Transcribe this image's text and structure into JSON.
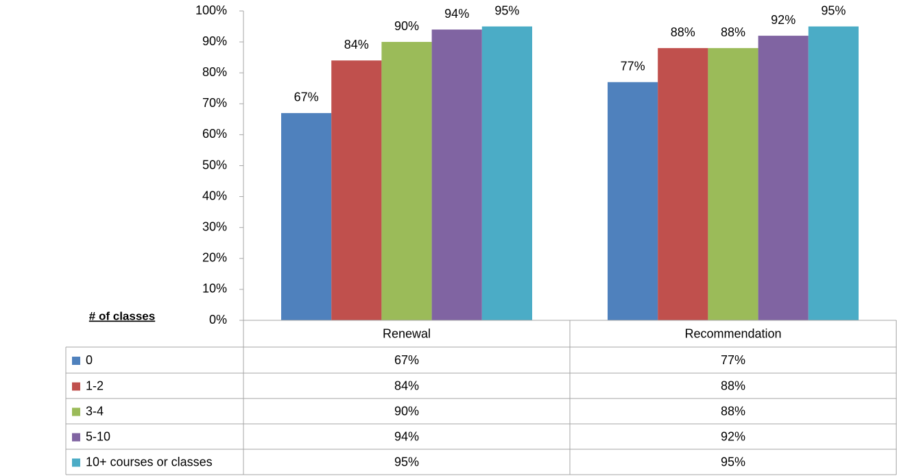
{
  "chart_data": {
    "type": "bar",
    "categories": [
      "Renewal",
      "Recommendation"
    ],
    "legend_title": "# of classes",
    "series": [
      {
        "name": "0",
        "color": "#4f81bd",
        "values": [
          67,
          77
        ],
        "value_labels": [
          "67%",
          "77%"
        ]
      },
      {
        "name": "1-2",
        "color": "#c0504d",
        "values": [
          84,
          88
        ],
        "value_labels": [
          "84%",
          "88%"
        ]
      },
      {
        "name": "3-4",
        "color": "#9bbb59",
        "values": [
          90,
          88
        ],
        "value_labels": [
          "90%",
          "88%"
        ]
      },
      {
        "name": "5-10",
        "color": "#8064a2",
        "values": [
          94,
          92
        ],
        "value_labels": [
          "94%",
          "92%"
        ]
      },
      {
        "name": "10+ courses or classes",
        "color": "#4bacc6",
        "values": [
          95,
          95
        ],
        "value_labels": [
          "95%",
          "95%"
        ]
      }
    ],
    "ylim": [
      0,
      100
    ],
    "yticks": [
      {
        "value": 0,
        "label": "0%"
      },
      {
        "value": 10,
        "label": "10%"
      },
      {
        "value": 20,
        "label": "20%"
      },
      {
        "value": 30,
        "label": "30%"
      },
      {
        "value": 40,
        "label": "40%"
      },
      {
        "value": 50,
        "label": "50%"
      },
      {
        "value": 60,
        "label": "60%"
      },
      {
        "value": 70,
        "label": "70%"
      },
      {
        "value": 80,
        "label": "80%"
      },
      {
        "value": 90,
        "label": "90%"
      },
      {
        "value": 100,
        "label": "100%"
      }
    ],
    "grid": false,
    "data_table": true
  }
}
